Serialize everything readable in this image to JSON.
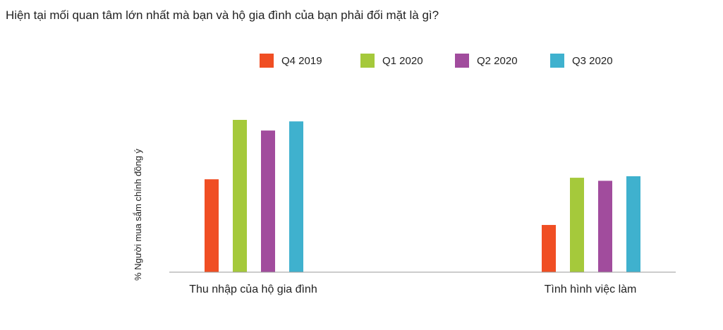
{
  "question": "Hiện tại mối quan tâm lớn nhất mà bạn và hộ gia đình của bạn phải đối mặt là gì?",
  "chart_data": {
    "type": "bar",
    "title": "",
    "xlabel": "",
    "ylabel": "% Người mua sắm chính đồng ý",
    "categories": [
      "Thu nhập của hộ gia đình",
      "Tình hình việc làm"
    ],
    "series": [
      {
        "name": "Q4 2019",
        "color": "#F04E23",
        "values": [
          0.61,
          0.31
        ]
      },
      {
        "name": "Q1 2020",
        "color": "#A5C93B",
        "values": [
          1.0,
          0.62
        ]
      },
      {
        "name": "Q2 2020",
        "color": "#A14C9D",
        "values": [
          0.93,
          0.6
        ]
      },
      {
        "name": "Q3 2020",
        "color": "#3FB1CE",
        "values": [
          0.99,
          0.63
        ]
      }
    ],
    "ylim": [
      0,
      1.0
    ],
    "y_unit": "relative (no axis scale printed)",
    "grid": false,
    "legend_position": "top"
  }
}
